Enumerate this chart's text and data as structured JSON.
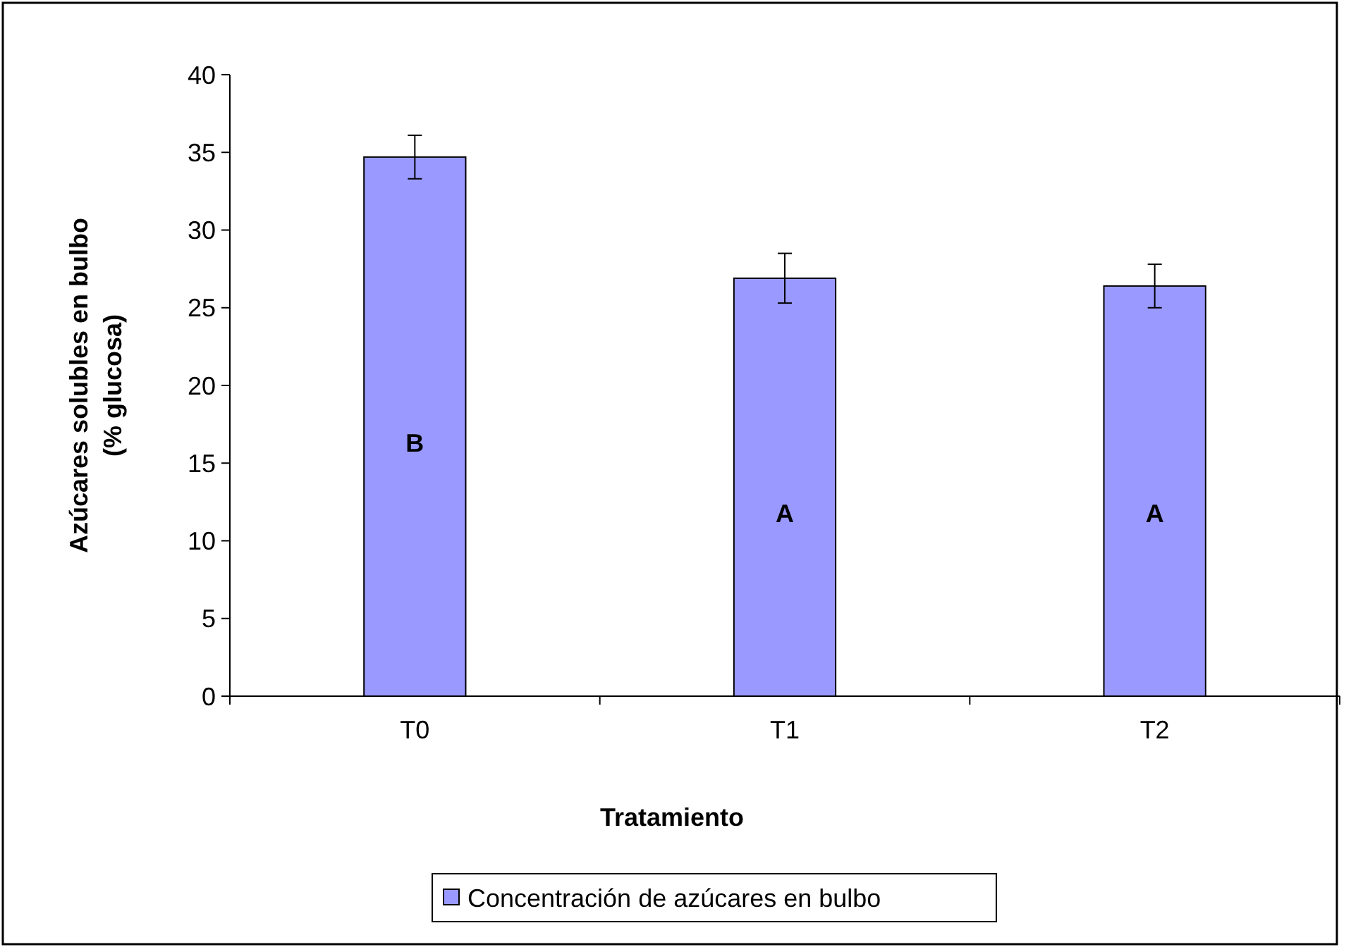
{
  "chart_data": {
    "type": "bar",
    "xlabel": "Tratamiento",
    "ylabel": "Azúcares solubles en bulbo (% glucosa)",
    "categories": [
      "T0",
      "T1",
      "T2"
    ],
    "series": [
      {
        "name": "Concentración de azúcares en bulbo",
        "color": "#9999ff",
        "values": [
          34.7,
          26.9,
          26.4
        ],
        "errors": [
          1.4,
          1.6,
          1.4
        ]
      }
    ],
    "ylim": [
      0,
      40
    ],
    "yticks": [
      0,
      5,
      10,
      15,
      20,
      25,
      30,
      35,
      40
    ],
    "grid": false,
    "legend": "bottom",
    "annotations": [
      "B",
      "A",
      "A"
    ]
  }
}
